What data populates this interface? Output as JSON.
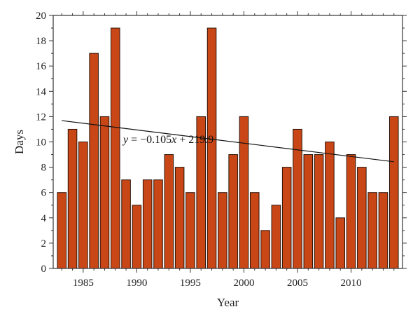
{
  "chart_data": {
    "type": "bar",
    "xlabel": "Year",
    "ylabel": "Days",
    "x": [
      1983,
      1984,
      1985,
      1986,
      1987,
      1988,
      1989,
      1990,
      1991,
      1992,
      1993,
      1994,
      1995,
      1996,
      1997,
      1998,
      1999,
      2000,
      2001,
      2002,
      2003,
      2004,
      2005,
      2006,
      2007,
      2008,
      2009,
      2010,
      2011,
      2012,
      2013,
      2014
    ],
    "values": [
      6,
      11,
      10,
      17,
      12,
      19,
      7,
      5,
      7,
      7,
      9,
      8,
      6,
      12,
      19,
      6,
      9,
      12,
      6,
      3,
      5,
      8,
      11,
      9,
      9,
      10,
      4,
      9,
      8,
      6,
      6,
      12
    ],
    "xlim": [
      1982.2,
      2014.8
    ],
    "ylim": [
      0,
      20
    ],
    "x_ticks": [
      "1985",
      "1990",
      "1995",
      "2000",
      "2005",
      "2010"
    ],
    "y_ticks": [
      "0",
      "2",
      "4",
      "6",
      "8",
      "10",
      "12",
      "14",
      "16",
      "18",
      "20"
    ],
    "bar_color": "#c94717",
    "trendline": {
      "slope": -0.105,
      "intercept": 219.9,
      "x_range": [
        1983,
        2014
      ],
      "label_parts": [
        "y",
        " = −0.105",
        "x",
        " + 219.9"
      ]
    },
    "grid": false,
    "legend": "none"
  }
}
